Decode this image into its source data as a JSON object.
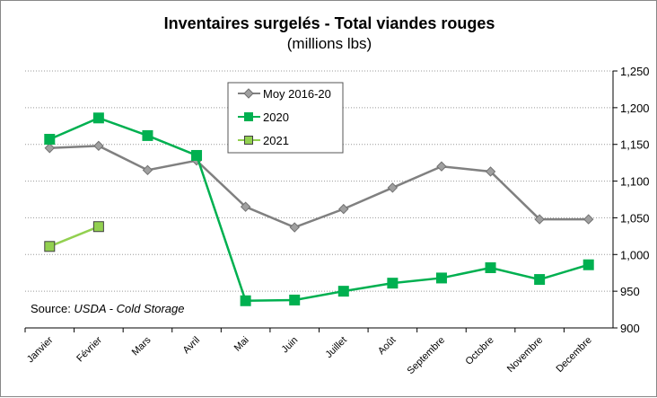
{
  "chart_data": {
    "type": "line",
    "title": "Inventaires surgelés - Total viandes rouges",
    "subtitle": "(millions lbs)",
    "categories": [
      "Janvier",
      "Février",
      "Mars",
      "Avril",
      "Mai",
      "Juin",
      "Juillet",
      "Août",
      "Septembre",
      "Octobre",
      "Novembre",
      "Decembre"
    ],
    "ylim": [
      900,
      1250
    ],
    "yticks": [
      900,
      950,
      1000,
      1050,
      1100,
      1150,
      1200,
      1250
    ],
    "ytick_labels": [
      "900",
      "950",
      "1,000",
      "1,050",
      "1,100",
      "1,150",
      "1,200",
      "1,250"
    ],
    "yaxis_side": "right",
    "grid": true,
    "legend_placement": "top-center",
    "annotation": {
      "prefix": "Source: ",
      "italic": "USDA - Cold Storage"
    },
    "series": [
      {
        "name": "Moy 2016-20",
        "color": "#808080",
        "marker": "diamond",
        "marker_color": "#a0a0a0",
        "values": [
          1145,
          1148,
          1115,
          1128,
          1065,
          1037,
          1062,
          1091,
          1120,
          1113,
          1048,
          1048
        ]
      },
      {
        "name": "2020",
        "color": "#00b050",
        "marker": "square",
        "marker_color": "#00b050",
        "values": [
          1157,
          1186,
          1162,
          1135,
          937,
          938,
          950,
          961,
          968,
          982,
          966,
          986
        ]
      },
      {
        "name": "2021",
        "color": "#92d050",
        "marker": "square",
        "marker_color": "#92d050",
        "values": [
          1011,
          1038,
          null,
          null,
          null,
          null,
          null,
          null,
          null,
          null,
          null,
          null
        ]
      }
    ]
  }
}
